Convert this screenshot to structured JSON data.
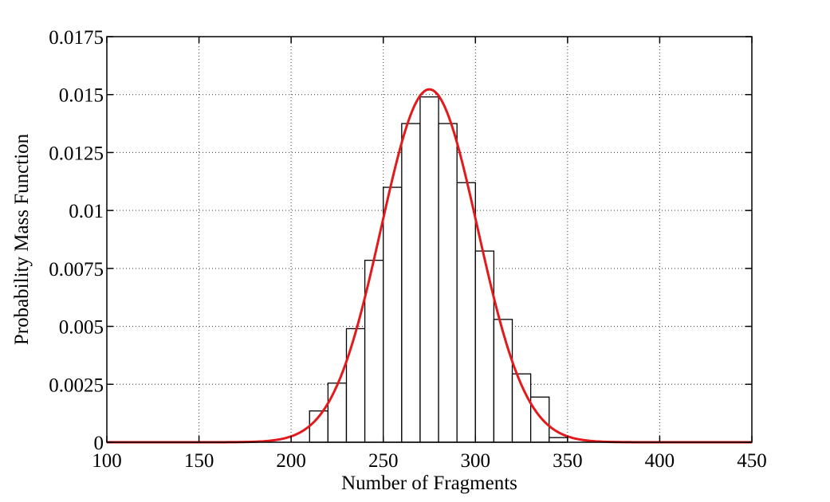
{
  "chart_data": {
    "type": "bar",
    "title": "",
    "xlabel": "Number of Fragments",
    "ylabel": "Probability Mass Function",
    "xlim": [
      100,
      450
    ],
    "ylim": [
      0,
      0.0175
    ],
    "grid": true,
    "x_ticks": [
      100,
      150,
      200,
      250,
      300,
      350,
      400,
      450
    ],
    "x_tick_labels": [
      "100",
      "150",
      "200",
      "250",
      "300",
      "350",
      "400",
      "450"
    ],
    "y_ticks": [
      0,
      0.0025,
      0.005,
      0.0075,
      0.01,
      0.0125,
      0.015,
      0.0175
    ],
    "y_tick_labels": [
      "0",
      "0.0025",
      "0.005",
      "0.0075",
      "0.01",
      "0.0125",
      "0.015",
      "0.0175"
    ],
    "histogram": {
      "bin_edges": [
        210,
        220,
        230,
        240,
        250,
        260,
        270,
        280,
        290,
        300,
        310,
        320,
        330,
        340,
        350
      ],
      "values": [
        0.00135,
        0.00255,
        0.0049,
        0.00785,
        0.011,
        0.01375,
        0.0149,
        0.01375,
        0.0112,
        0.00825,
        0.0053,
        0.00295,
        0.00195,
        0.0002
      ],
      "fill_color": "#ffffff",
      "edge_color": "#000000"
    },
    "series": [
      {
        "type": "line",
        "curve": "normal-pdf",
        "mean": 275,
        "std": 26.2,
        "color": "#e31a1c"
      }
    ]
  }
}
